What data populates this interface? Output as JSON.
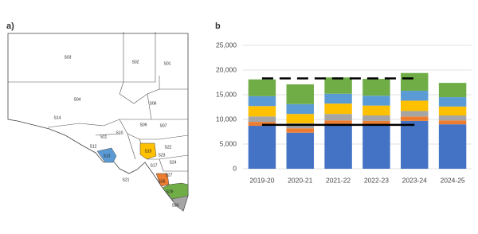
{
  "map": {
    "label": "a)",
    "regions": [
      {
        "label": "S03"
      },
      {
        "label": "S02"
      },
      {
        "label": "S01"
      },
      {
        "label": "S04"
      },
      {
        "label": "S06"
      },
      {
        "label": "S14"
      },
      {
        "label": "S07"
      },
      {
        "label": "S10"
      },
      {
        "label": "S09"
      },
      {
        "label": "S11"
      },
      {
        "label": "S12"
      },
      {
        "label": "S13"
      },
      {
        "label": "S15"
      },
      {
        "label": "S22"
      },
      {
        "label": "S23"
      },
      {
        "label": "S24"
      },
      {
        "label": "S17"
      },
      {
        "label": "S27"
      },
      {
        "label": "S21"
      },
      {
        "label": "S26"
      },
      {
        "label": "S29"
      },
      {
        "label": "S30"
      }
    ]
  },
  "chart_data": {
    "type": "bar",
    "stacked": true,
    "panel_label": "b",
    "categories": [
      "2019-20",
      "2020-21",
      "2021-22",
      "2022-23",
      "2023-24",
      "2024-25"
    ],
    "series": [
      {
        "color": "#4472c4",
        "values": [
          8700,
          7300,
          8900,
          8900,
          9700,
          9000
        ]
      },
      {
        "color": "#ed7d31",
        "values": [
          800,
          900,
          900,
          800,
          900,
          800
        ]
      },
      {
        "color": "#a5a5a5",
        "values": [
          1100,
          1000,
          1300,
          1100,
          1100,
          1000
        ]
      },
      {
        "color": "#ffc000",
        "values": [
          2100,
          1900,
          2100,
          2000,
          2100,
          1800
        ]
      },
      {
        "color": "#5b9bd5",
        "values": [
          2000,
          2000,
          2000,
          2000,
          2000,
          1900
        ]
      },
      {
        "color": "#70ad47",
        "values": [
          3400,
          4000,
          3300,
          3400,
          3600,
          2900
        ]
      }
    ],
    "lines": [
      {
        "color": "#000000",
        "dashed": false,
        "values": [
          8900,
          8900,
          8900,
          8900,
          8900,
          null
        ]
      },
      {
        "color": "#000000",
        "dashed": true,
        "values": [
          18300,
          18300,
          18300,
          18300,
          18300,
          null
        ]
      }
    ],
    "ylim": [
      0,
      25000
    ],
    "yticks": [
      0,
      {
        "value": 5000,
        "label": "5,000"
      },
      {
        "value": 10000,
        "label": "10,000"
      },
      {
        "value": 15000,
        "label": "15,000"
      },
      {
        "value": 20000,
        "label": "20,000"
      },
      {
        "value": 25000,
        "label": "25,000"
      }
    ],
    "grid": true
  }
}
